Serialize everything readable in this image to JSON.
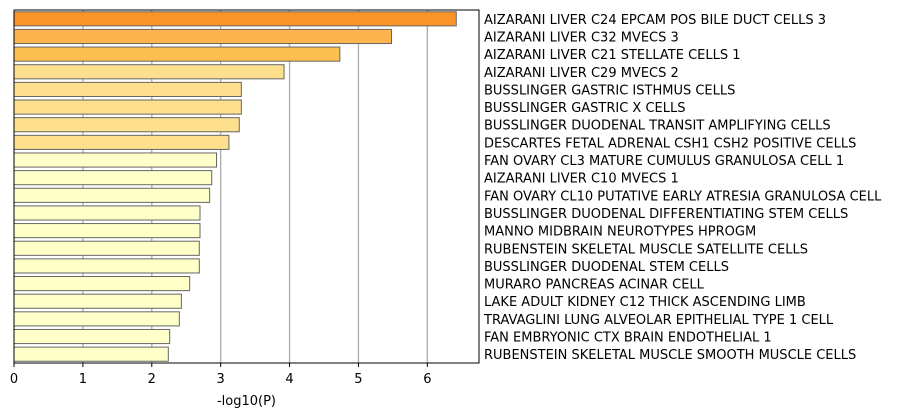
{
  "chart_data": {
    "type": "bar",
    "orientation": "horizontal",
    "title": "",
    "xlabel": "-log10(P)",
    "ylabel": "",
    "xlim": [
      0,
      6.75
    ],
    "xticks": [
      0,
      1,
      2,
      3,
      4,
      5,
      6
    ],
    "grid": "vertical",
    "categories": [
      "AIZARANI LIVER C24 EPCAM POS BILE DUCT CELLS 3",
      "AIZARANI LIVER C32 MVECS 3",
      "AIZARANI LIVER C21 STELLATE CELLS 1",
      "AIZARANI LIVER C29 MVECS 2",
      "BUSSLINGER GASTRIC ISTHMUS CELLS",
      "BUSSLINGER GASTRIC X CELLS",
      "BUSSLINGER DUODENAL TRANSIT AMPLIFYING CELLS",
      "DESCARTES FETAL ADRENAL CSH1 CSH2 POSITIVE CELLS",
      "FAN OVARY CL3 MATURE CUMULUS GRANULOSA CELL 1",
      "AIZARANI LIVER C10 MVECS 1",
      "FAN OVARY CL10 PUTATIVE EARLY ATRESIA GRANULOSA CELL",
      "BUSSLINGER DUODENAL DIFFERENTIATING STEM CELLS",
      "MANNO MIDBRAIN NEUROTYPES HPROGM",
      "RUBENSTEIN SKELETAL MUSCLE SATELLITE CELLS",
      "BUSSLINGER DUODENAL STEM CELLS",
      "MURARO PANCREAS ACINAR CELL",
      "LAKE ADULT KIDNEY C12 THICK ASCENDING LIMB",
      "TRAVAGLINI LUNG ALVEOLAR EPITHELIAL TYPE 1 CELL",
      "FAN EMBRYONIC CTX BRAIN ENDOTHELIAL 1",
      "RUBENSTEIN SKELETAL MUSCLE SMOOTH MUSCLE CELLS"
    ],
    "values": [
      6.42,
      5.48,
      4.73,
      3.92,
      3.3,
      3.3,
      3.27,
      3.12,
      2.94,
      2.87,
      2.84,
      2.7,
      2.7,
      2.69,
      2.69,
      2.55,
      2.43,
      2.4,
      2.26,
      2.24
    ],
    "colors": [
      "#fb9426",
      "#fdb44e",
      "#fdbf4f",
      "#fedf8e",
      "#fedf8e",
      "#fedf8e",
      "#fedf8e",
      "#fedf8e",
      "#ffffc8",
      "#ffffc8",
      "#ffffc8",
      "#ffffc8",
      "#ffffc8",
      "#ffffc8",
      "#ffffc8",
      "#ffffc8",
      "#ffffc8",
      "#ffffc8",
      "#ffffc8",
      "#ffffc8"
    ],
    "bar_edge_color": "#666666",
    "grid_color": "#b0b0b0"
  }
}
